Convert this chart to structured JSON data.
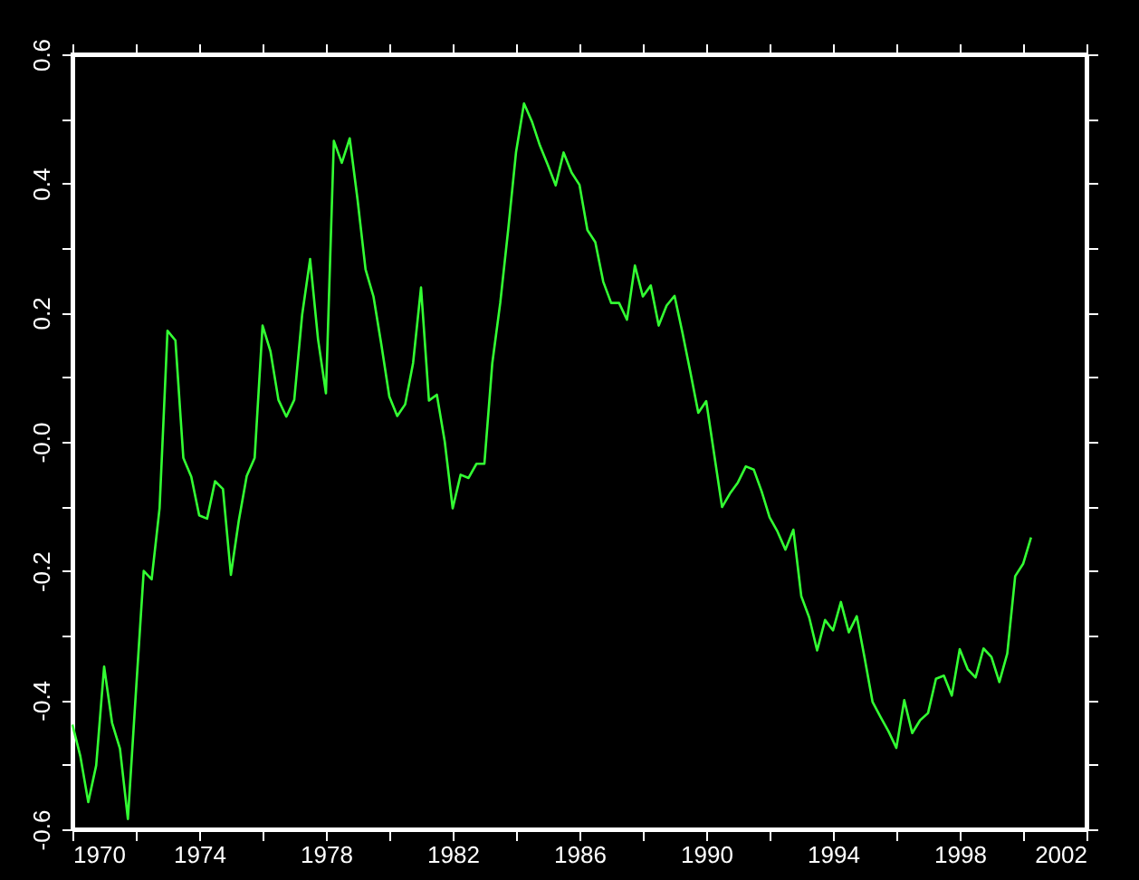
{
  "chart_data": {
    "type": "line",
    "x": [
      1970.0,
      1970.25,
      1970.5,
      1970.75,
      1971.0,
      1971.25,
      1971.5,
      1971.75,
      1972.0,
      1972.25,
      1972.5,
      1972.75,
      1973.0,
      1973.25,
      1973.5,
      1973.75,
      1974.0,
      1974.25,
      1974.5,
      1974.75,
      1975.0,
      1975.25,
      1975.5,
      1975.75,
      1976.0,
      1976.25,
      1976.5,
      1976.75,
      1977.0,
      1977.25,
      1977.5,
      1977.75,
      1978.0,
      1978.25,
      1978.5,
      1978.75,
      1979.0,
      1979.25,
      1979.5,
      1979.75,
      1980.0,
      1980.25,
      1980.5,
      1980.75,
      1981.0,
      1981.25,
      1981.5,
      1981.75,
      1982.0,
      1982.25,
      1982.5,
      1982.75,
      1983.0,
      1983.25,
      1983.5,
      1983.75,
      1984.0,
      1984.25,
      1984.5,
      1984.75,
      1985.0,
      1985.25,
      1985.5,
      1985.75,
      1986.0,
      1986.25,
      1986.5,
      1986.75,
      1987.0,
      1987.25,
      1987.5,
      1987.75,
      1988.0,
      1988.25,
      1988.5,
      1988.75,
      1989.0,
      1989.25,
      1989.5,
      1989.75,
      1990.0,
      1990.25,
      1990.5,
      1990.75,
      1991.0,
      1991.25,
      1991.5,
      1991.75,
      1992.0,
      1992.25,
      1992.5,
      1992.75,
      1993.0,
      1993.25,
      1993.5,
      1993.75,
      1994.0,
      1994.25,
      1994.5,
      1994.75,
      1995.0,
      1995.25,
      1995.5,
      1995.75,
      1996.0,
      1996.25,
      1996.5,
      1996.75,
      1997.0,
      1997.25,
      1997.5,
      1997.75,
      1998.0,
      1998.25,
      1998.5,
      1998.75,
      1999.0,
      1999.25,
      1999.5,
      1999.75,
      2000.0,
      2000.25
    ],
    "series": [
      {
        "color": "#33ff33",
        "values": [
          -0.438,
          -0.487,
          -0.558,
          -0.501,
          -0.348,
          -0.435,
          -0.475,
          -0.584,
          -0.39,
          -0.2,
          -0.213,
          -0.103,
          0.172,
          0.157,
          -0.025,
          -0.054,
          -0.114,
          -0.119,
          -0.061,
          -0.073,
          -0.206,
          -0.122,
          -0.053,
          -0.025,
          0.18,
          0.14,
          0.065,
          0.039,
          0.065,
          0.197,
          0.283,
          0.159,
          0.075,
          0.466,
          0.432,
          0.47,
          0.374,
          0.267,
          0.225,
          0.15,
          0.07,
          0.04,
          0.058,
          0.122,
          0.239,
          0.064,
          0.073,
          0.0,
          -0.103,
          -0.051,
          -0.056,
          -0.034,
          -0.034,
          0.122,
          0.215,
          0.328,
          0.449,
          0.524,
          0.496,
          0.459,
          0.429,
          0.397,
          0.448,
          0.417,
          0.398,
          0.328,
          0.309,
          0.248,
          0.215,
          0.215,
          0.189,
          0.273,
          0.225,
          0.242,
          0.18,
          0.211,
          0.226,
          0.169,
          0.108,
          0.045,
          0.063,
          -0.019,
          -0.101,
          -0.08,
          -0.063,
          -0.038,
          -0.043,
          -0.077,
          -0.117,
          -0.139,
          -0.167,
          -0.136,
          -0.239,
          -0.272,
          -0.323,
          -0.276,
          -0.292,
          -0.248,
          -0.295,
          -0.27,
          -0.335,
          -0.403,
          -0.426,
          -0.448,
          -0.474,
          -0.4,
          -0.451,
          -0.431,
          -0.42,
          -0.367,
          -0.362,
          -0.393,
          -0.321,
          -0.352,
          -0.365,
          -0.32,
          -0.333,
          -0.372,
          -0.328,
          -0.208,
          -0.189,
          -0.148
        ]
      }
    ],
    "xlim": [
      1970,
      2002
    ],
    "xticks": [
      1970,
      {
        "value": 1972,
        "label": null
      },
      1974,
      {
        "value": 1976,
        "label": null
      },
      1978,
      {
        "value": 1980,
        "label": null
      },
      1982,
      {
        "value": 1984,
        "label": null
      },
      1986,
      {
        "value": 1988,
        "label": null
      },
      1990,
      {
        "value": 1992,
        "label": null
      },
      1994,
      {
        "value": 1996,
        "label": null
      },
      1998,
      {
        "value": 2000,
        "label": null
      },
      2002
    ],
    "ylim": [
      -0.6,
      0.6
    ],
    "yticks": [
      -0.6,
      {
        "value": -0.5,
        "label": null
      },
      -0.4,
      {
        "value": -0.3,
        "label": null
      },
      -0.2,
      {
        "value": -0.1,
        "label": null
      },
      {
        "value": 0,
        "label": "-0.0"
      },
      {
        "value": 0.1,
        "label": null
      },
      0.2,
      {
        "value": 0.3,
        "label": null
      },
      0.4,
      {
        "value": 0.5,
        "label": null
      },
      0.6
    ],
    "grid": false,
    "marker": "none",
    "line_style": "solid"
  }
}
